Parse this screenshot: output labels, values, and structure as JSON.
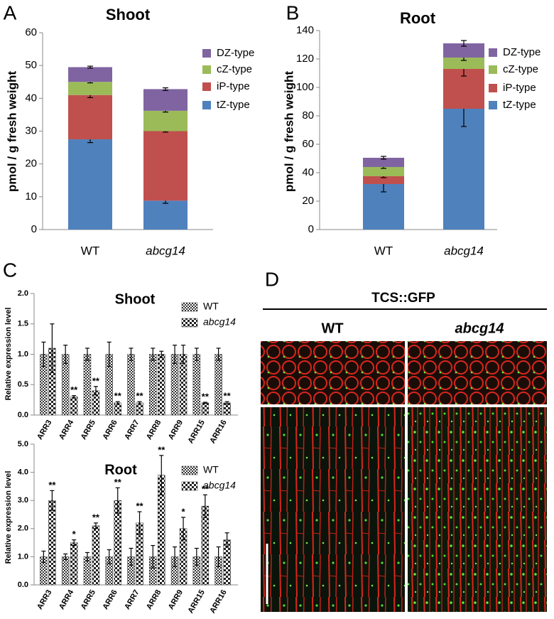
{
  "chart_data": [
    {
      "type": "stacked_bar",
      "panel": "A",
      "title": "Shoot",
      "y_label": "pmol / g fresh weight",
      "categories": [
        "WT",
        "abcg14"
      ],
      "ylim": [
        0,
        60
      ],
      "yticks": [
        0,
        10,
        20,
        30,
        40,
        50,
        60
      ],
      "series": [
        {
          "name": "tZ-type",
          "color": "#4f81bd",
          "values": [
            27.5,
            8.8
          ],
          "errors": [
            1.0,
            0.8
          ]
        },
        {
          "name": "iP-type",
          "color": "#c0504d",
          "values": [
            13.5,
            21.2
          ],
          "errors": [
            0.8,
            0.3
          ]
        },
        {
          "name": "cZ-type",
          "color": "#9bbb59",
          "values": [
            4.0,
            6.2
          ],
          "errors": [
            0.3,
            0.4
          ]
        },
        {
          "name": "DZ-type",
          "color": "#8064a2",
          "values": [
            4.5,
            6.6
          ],
          "errors": [
            0.3,
            0.4
          ]
        }
      ]
    },
    {
      "type": "stacked_bar",
      "panel": "B",
      "title": "Root",
      "y_label": "pmol / g fresh weight",
      "categories": [
        "WT",
        "abcg14"
      ],
      "ylim": [
        0,
        140
      ],
      "yticks": [
        0,
        20,
        40,
        60,
        80,
        100,
        120,
        140
      ],
      "series": [
        {
          "name": "tZ-type",
          "color": "#4f81bd",
          "values": [
            32,
            85
          ],
          "errors": [
            5.5,
            12.5
          ]
        },
        {
          "name": "iP-type",
          "color": "#c0504d",
          "values": [
            5.5,
            28
          ],
          "errors": [
            1.0,
            5.0
          ]
        },
        {
          "name": "cZ-type",
          "color": "#9bbb59",
          "values": [
            6.5,
            8
          ],
          "errors": [
            1.0,
            2.0
          ]
        },
        {
          "name": "DZ-type",
          "color": "#8064a2",
          "values": [
            6.5,
            10
          ],
          "errors": [
            1.0,
            2.0
          ]
        }
      ]
    },
    {
      "type": "grouped_bar",
      "panel": "C",
      "title": "Shoot",
      "y_label": "Relative expression level",
      "categories": [
        "ARR3",
        "ARR4",
        "ARR5",
        "ARR6",
        "ARR7",
        "ARR8",
        "ARR9",
        "ARR15",
        "ARR16"
      ],
      "ylim": [
        0,
        2
      ],
      "yticks": [
        {
          "value": 0,
          "label": "0.0"
        },
        0.5,
        {
          "value": 1,
          "label": "1.0"
        },
        1.5,
        {
          "value": 2,
          "label": "2.0"
        }
      ],
      "series": [
        {
          "name": "WT",
          "values": [
            1.0,
            1.0,
            1.0,
            1.0,
            1.0,
            1.0,
            1.0,
            1.0,
            1.0
          ],
          "errors": [
            0.2,
            0.15,
            0.1,
            0.2,
            0.1,
            0.1,
            0.15,
            0.1,
            0.1
          ]
        },
        {
          "name": "abcg14",
          "values": [
            1.1,
            0.3,
            0.4,
            0.2,
            0.2,
            1.0,
            1.0,
            0.2,
            0.2
          ],
          "errors": [
            0.4,
            0.02,
            0.07,
            0.02,
            0.02,
            0.05,
            0.15,
            0.01,
            0.02
          ],
          "significance": [
            null,
            "**",
            "**",
            "**",
            "**",
            null,
            null,
            "**",
            "**"
          ]
        }
      ]
    },
    {
      "type": "grouped_bar",
      "title": "Root",
      "y_label": "Relative expression level",
      "categories": [
        "ARR3",
        "ARR4",
        "ARR5",
        "ARR6",
        "ARR7",
        "ARR8",
        "ARR9",
        "ARR15",
        "ARR16"
      ],
      "ylim": [
        0,
        5
      ],
      "yticks": [
        {
          "value": 0,
          "label": "0.0"
        },
        {
          "value": 1,
          "label": "1.0"
        },
        {
          "value": 2,
          "label": "2.0"
        },
        {
          "value": 3,
          "label": "3.0"
        },
        {
          "value": 4,
          "label": "4.0"
        },
        {
          "value": 5,
          "label": "5.0"
        }
      ],
      "series": [
        {
          "name": "WT",
          "values": [
            1.0,
            1.0,
            1.0,
            1.0,
            1.0,
            1.0,
            1.0,
            1.0,
            1.0
          ],
          "errors": [
            0.2,
            0.1,
            0.15,
            0.25,
            0.3,
            0.4,
            0.35,
            0.3,
            0.35
          ]
        },
        {
          "name": "abcg14",
          "values": [
            3.0,
            1.5,
            2.1,
            3.0,
            2.2,
            3.9,
            2.0,
            2.8,
            1.6
          ],
          "errors": [
            0.35,
            0.1,
            0.1,
            0.45,
            0.4,
            0.7,
            0.4,
            0.4,
            0.25
          ],
          "significance": [
            "**",
            "*",
            "**",
            "**",
            "**",
            "**",
            "*",
            "**",
            null
          ]
        }
      ]
    }
  ],
  "panel_d": {
    "panel": "D",
    "title": "TCS::GFP",
    "columns": [
      "WT",
      "abcg14"
    ]
  }
}
